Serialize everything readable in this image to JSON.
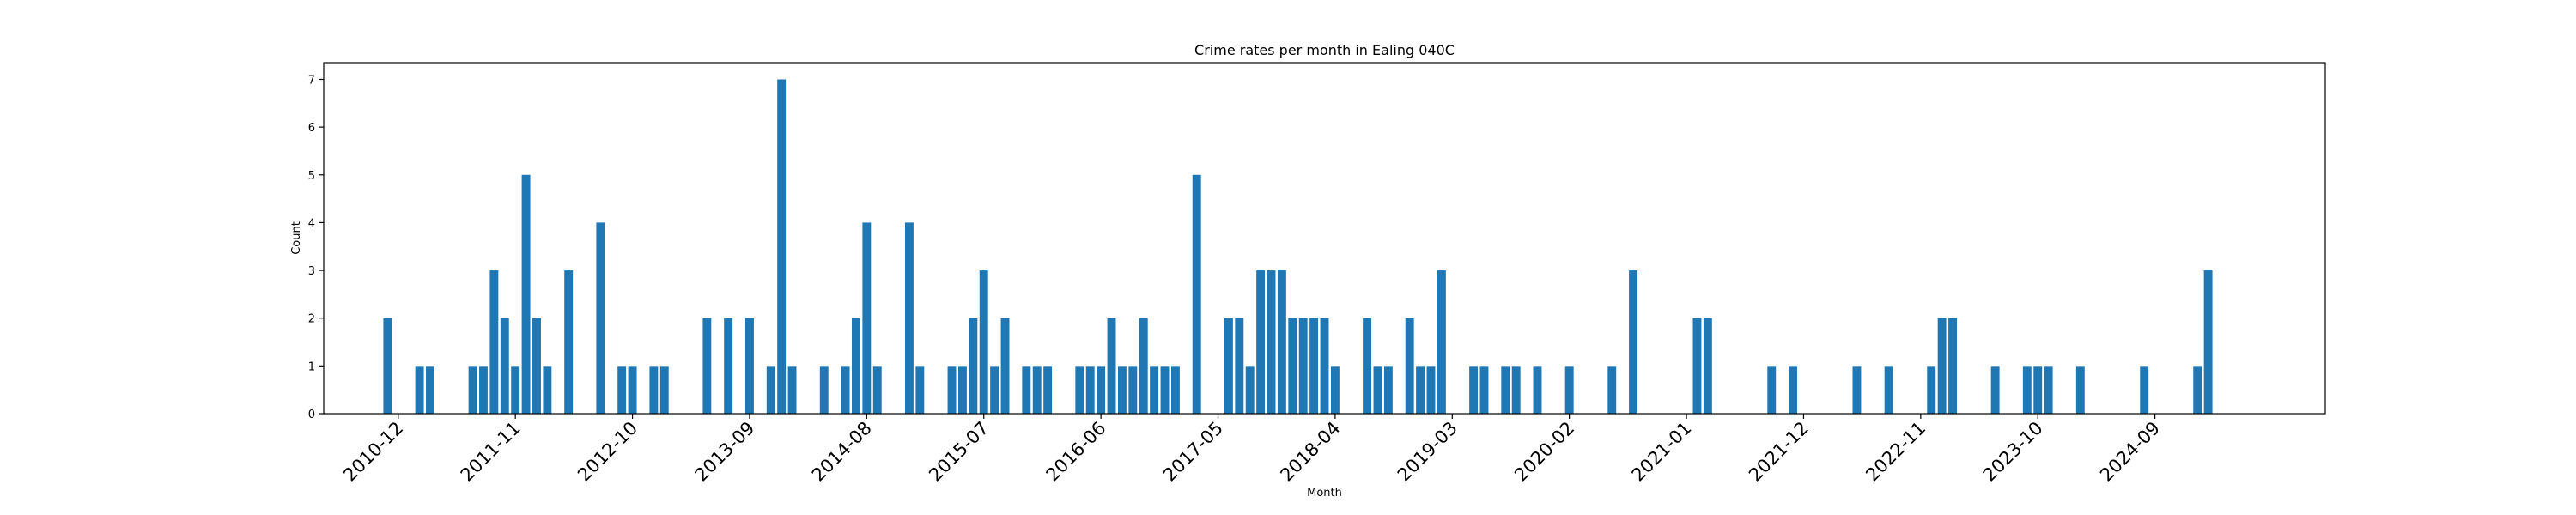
{
  "chart_data": {
    "type": "bar",
    "title": "Crime rates per month in Ealing 040C",
    "xlabel": "Month",
    "ylabel": "Count",
    "ylim": [
      0,
      7.35
    ],
    "yticks": [
      0,
      1,
      2,
      3,
      4,
      5,
      6,
      7
    ],
    "xlim": [
      "2010-05",
      "2026-01"
    ],
    "xticks": [
      "2010-12",
      "2011-11",
      "2012-10",
      "2013-09",
      "2014-08",
      "2015-07",
      "2016-06",
      "2017-05",
      "2018-04",
      "2019-03",
      "2020-02",
      "2021-01",
      "2021-12",
      "2022-11",
      "2023-10",
      "2024-09"
    ],
    "bar_color": "#1f77b4",
    "data": [
      [
        "2010-11",
        2
      ],
      [
        "2011-02",
        1
      ],
      [
        "2011-03",
        1
      ],
      [
        "2011-07",
        1
      ],
      [
        "2011-08",
        1
      ],
      [
        "2011-09",
        3
      ],
      [
        "2011-10",
        2
      ],
      [
        "2011-11",
        1
      ],
      [
        "2011-12",
        5
      ],
      [
        "2012-01",
        2
      ],
      [
        "2012-02",
        1
      ],
      [
        "2012-04",
        3
      ],
      [
        "2012-07",
        4
      ],
      [
        "2012-09",
        1
      ],
      [
        "2012-10",
        1
      ],
      [
        "2012-12",
        1
      ],
      [
        "2013-01",
        1
      ],
      [
        "2013-05",
        2
      ],
      [
        "2013-07",
        2
      ],
      [
        "2013-09",
        2
      ],
      [
        "2013-11",
        1
      ],
      [
        "2013-12",
        7
      ],
      [
        "2014-01",
        1
      ],
      [
        "2014-04",
        1
      ],
      [
        "2014-06",
        1
      ],
      [
        "2014-07",
        2
      ],
      [
        "2014-08",
        4
      ],
      [
        "2014-09",
        1
      ],
      [
        "2014-12",
        4
      ],
      [
        "2015-01",
        1
      ],
      [
        "2015-04",
        1
      ],
      [
        "2015-05",
        1
      ],
      [
        "2015-06",
        2
      ],
      [
        "2015-07",
        3
      ],
      [
        "2015-08",
        1
      ],
      [
        "2015-09",
        2
      ],
      [
        "2015-11",
        1
      ],
      [
        "2015-12",
        1
      ],
      [
        "2016-01",
        1
      ],
      [
        "2016-04",
        1
      ],
      [
        "2016-05",
        1
      ],
      [
        "2016-06",
        1
      ],
      [
        "2016-07",
        2
      ],
      [
        "2016-08",
        1
      ],
      [
        "2016-09",
        1
      ],
      [
        "2016-10",
        2
      ],
      [
        "2016-11",
        1
      ],
      [
        "2016-12",
        1
      ],
      [
        "2017-01",
        1
      ],
      [
        "2017-03",
        5
      ],
      [
        "2017-06",
        2
      ],
      [
        "2017-07",
        2
      ],
      [
        "2017-08",
        1
      ],
      [
        "2017-09",
        3
      ],
      [
        "2017-10",
        3
      ],
      [
        "2017-11",
        3
      ],
      [
        "2017-12",
        2
      ],
      [
        "2018-01",
        2
      ],
      [
        "2018-02",
        2
      ],
      [
        "2018-03",
        2
      ],
      [
        "2018-04",
        1
      ],
      [
        "2018-07",
        2
      ],
      [
        "2018-08",
        1
      ],
      [
        "2018-09",
        1
      ],
      [
        "2018-11",
        2
      ],
      [
        "2018-12",
        1
      ],
      [
        "2019-01",
        1
      ],
      [
        "2019-02",
        3
      ],
      [
        "2019-05",
        1
      ],
      [
        "2019-06",
        1
      ],
      [
        "2019-08",
        1
      ],
      [
        "2019-09",
        1
      ],
      [
        "2019-11",
        1
      ],
      [
        "2020-02",
        1
      ],
      [
        "2020-06",
        1
      ],
      [
        "2020-08",
        3
      ],
      [
        "2021-02",
        2
      ],
      [
        "2021-03",
        2
      ],
      [
        "2021-09",
        1
      ],
      [
        "2021-11",
        1
      ],
      [
        "2022-05",
        1
      ],
      [
        "2022-08",
        1
      ],
      [
        "2022-12",
        1
      ],
      [
        "2023-01",
        2
      ],
      [
        "2023-02",
        2
      ],
      [
        "2023-06",
        1
      ],
      [
        "2023-09",
        1
      ],
      [
        "2023-10",
        1
      ],
      [
        "2023-11",
        1
      ],
      [
        "2024-02",
        1
      ],
      [
        "2024-08",
        1
      ],
      [
        "2025-01",
        1
      ],
      [
        "2025-02",
        3
      ]
    ]
  }
}
